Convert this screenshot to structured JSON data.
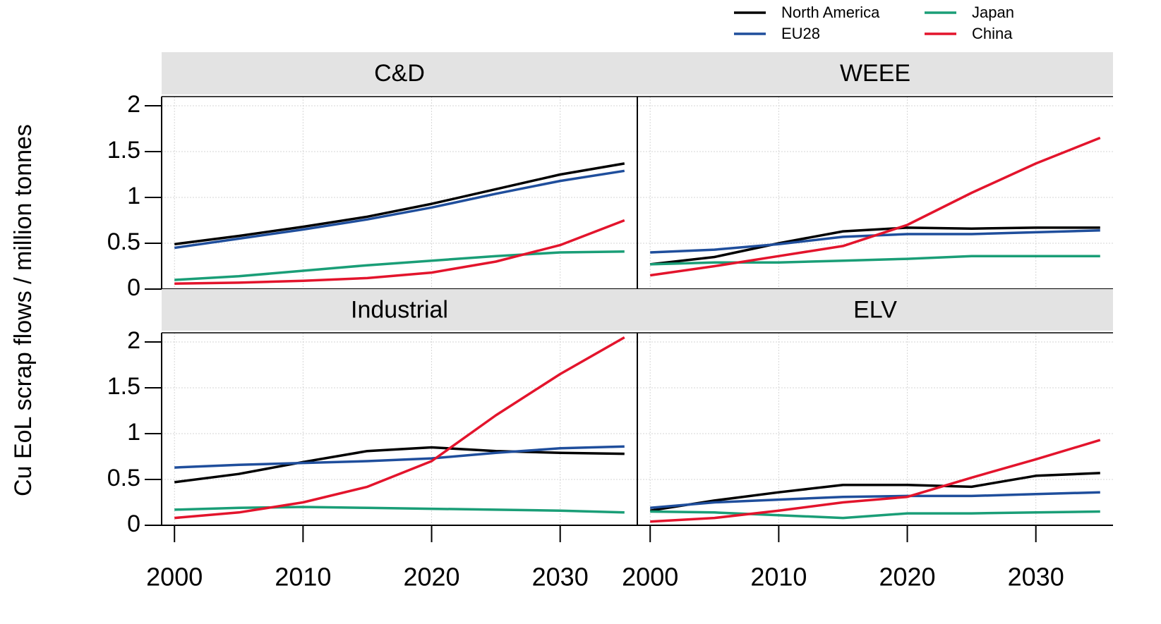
{
  "chart_data": {
    "type": "line",
    "ylabel": "Cu EoL scrap flows  /  million tonnes",
    "x": [
      2000,
      2005,
      2010,
      2015,
      2020,
      2025,
      2030,
      2035
    ],
    "xlim": [
      1999,
      2036
    ],
    "xticks": [
      2000,
      2010,
      2020,
      2030
    ],
    "ylim": [
      0,
      2.1
    ],
    "yticks": [
      0,
      0.5,
      1,
      1.5,
      2
    ],
    "grid": true,
    "legend_position": "top right",
    "legend": [
      {
        "name": "North America",
        "color": "#000000"
      },
      {
        "name": "EU28",
        "color": "#1f4e9c"
      },
      {
        "name": "Japan",
        "color": "#1a9e77"
      },
      {
        "name": "China",
        "color": "#e3142c"
      }
    ],
    "panels": [
      {
        "title": "C&D",
        "series": [
          {
            "values": [
              0.49,
              0.58,
              0.68,
              0.79,
              0.93,
              1.09,
              1.25,
              1.37
            ]
          },
          {
            "values": [
              0.45,
              0.55,
              0.65,
              0.76,
              0.89,
              1.04,
              1.18,
              1.29
            ]
          },
          {
            "values": [
              0.1,
              0.14,
              0.2,
              0.26,
              0.31,
              0.36,
              0.4,
              0.41
            ]
          },
          {
            "values": [
              0.06,
              0.07,
              0.09,
              0.12,
              0.18,
              0.3,
              0.48,
              0.75
            ]
          }
        ]
      },
      {
        "title": "WEEE",
        "series": [
          {
            "values": [
              0.27,
              0.35,
              0.5,
              0.63,
              0.67,
              0.66,
              0.67,
              0.67
            ]
          },
          {
            "values": [
              0.4,
              0.43,
              0.49,
              0.57,
              0.6,
              0.6,
              0.62,
              0.64
            ]
          },
          {
            "values": [
              0.27,
              0.29,
              0.29,
              0.31,
              0.33,
              0.36,
              0.36,
              0.36
            ]
          },
          {
            "values": [
              0.15,
              0.25,
              0.36,
              0.47,
              0.7,
              1.05,
              1.37,
              1.65
            ]
          }
        ]
      },
      {
        "title": "Industrial",
        "series": [
          {
            "values": [
              0.47,
              0.56,
              0.69,
              0.81,
              0.85,
              0.81,
              0.79,
              0.78
            ]
          },
          {
            "values": [
              0.63,
              0.66,
              0.68,
              0.7,
              0.73,
              0.79,
              0.84,
              0.86
            ]
          },
          {
            "values": [
              0.17,
              0.19,
              0.2,
              0.19,
              0.18,
              0.17,
              0.16,
              0.14
            ]
          },
          {
            "values": [
              0.08,
              0.14,
              0.25,
              0.42,
              0.7,
              1.2,
              1.65,
              2.05
            ]
          }
        ]
      },
      {
        "title": "ELV",
        "series": [
          {
            "values": [
              0.16,
              0.27,
              0.36,
              0.44,
              0.44,
              0.42,
              0.54,
              0.57
            ]
          },
          {
            "values": [
              0.19,
              0.25,
              0.28,
              0.31,
              0.32,
              0.32,
              0.34,
              0.36
            ]
          },
          {
            "values": [
              0.15,
              0.14,
              0.11,
              0.08,
              0.13,
              0.13,
              0.14,
              0.15
            ]
          },
          {
            "values": [
              0.04,
              0.08,
              0.16,
              0.25,
              0.31,
              0.52,
              0.72,
              0.93
            ]
          }
        ]
      }
    ]
  }
}
